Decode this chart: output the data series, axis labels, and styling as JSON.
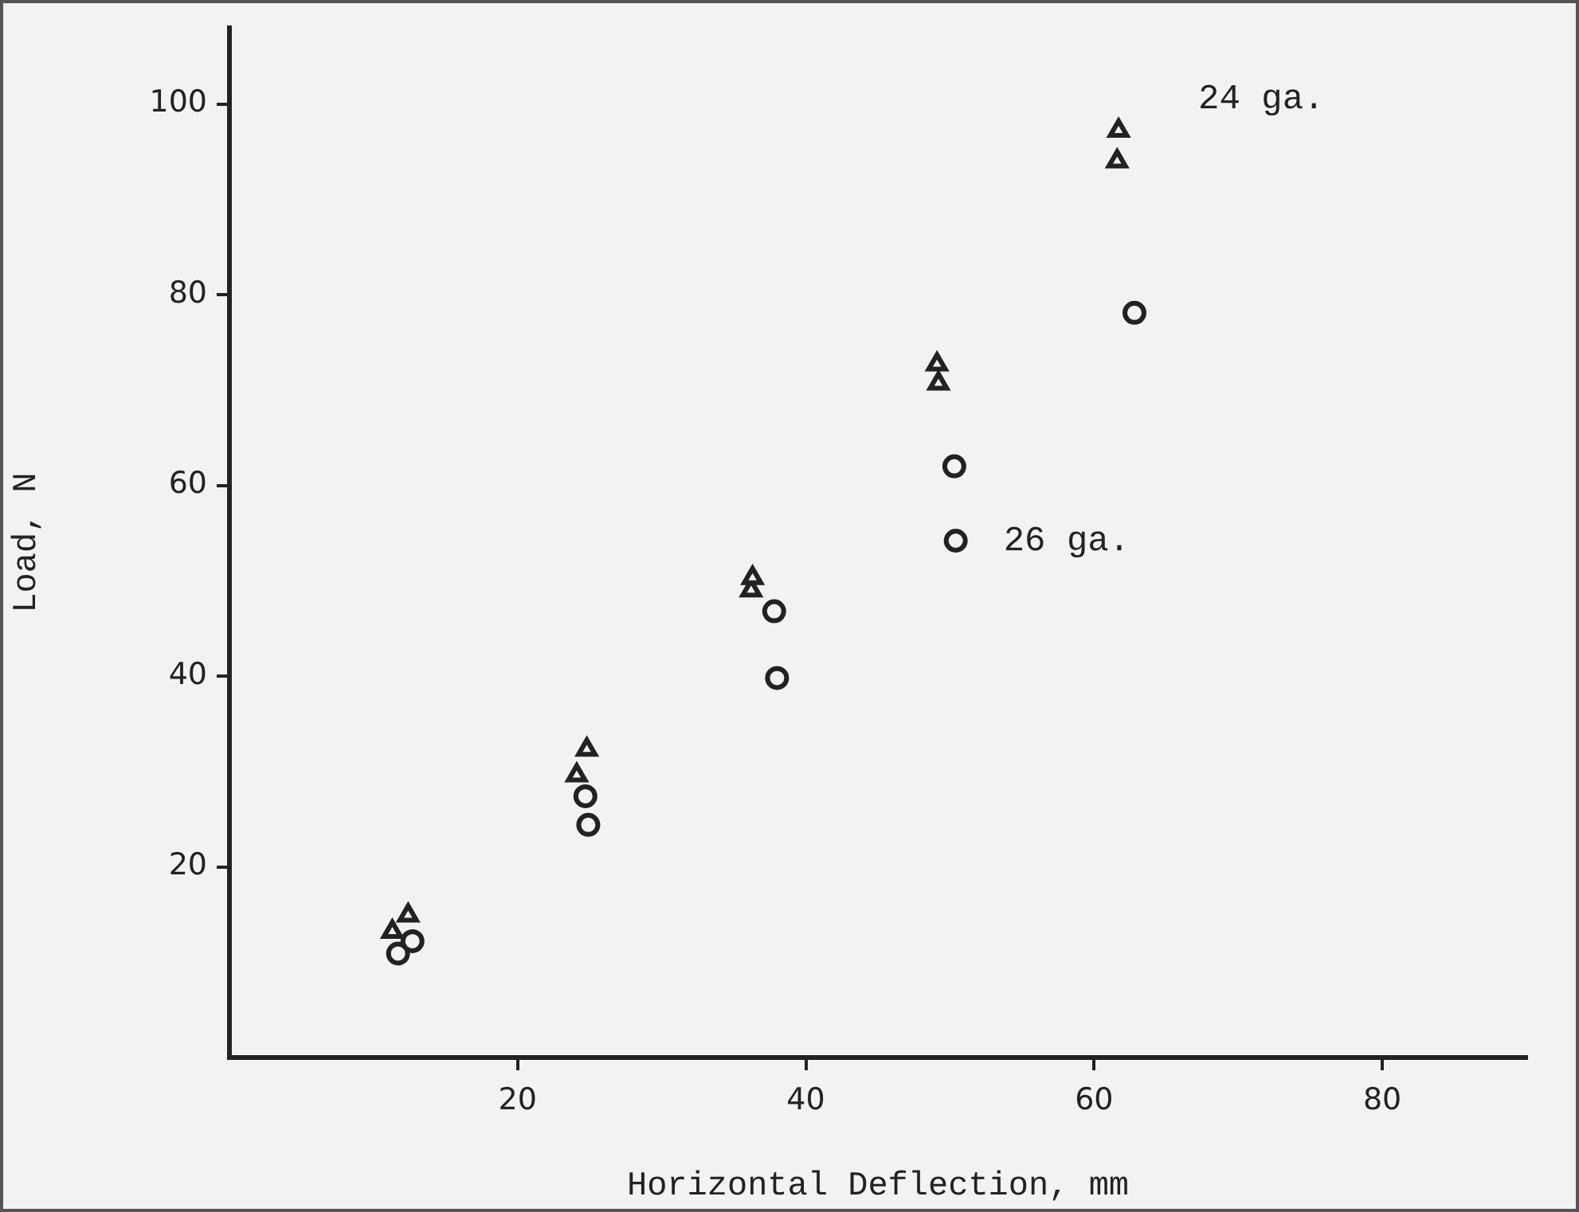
{
  "chart_data": {
    "type": "scatter",
    "xlabel": "Horizontal Deflection, mm",
    "ylabel": "Load, N",
    "xlim": [
      0,
      90
    ],
    "ylim": [
      0,
      108
    ],
    "xticks": [
      20,
      40,
      60,
      80
    ],
    "yticks": [
      20,
      40,
      60,
      80,
      100
    ],
    "grid": false,
    "legend": false,
    "series": [
      {
        "name": "24 ga.",
        "color": "#222222",
        "marker": "triangle",
        "x": [
          11.3,
          12.4,
          24.1,
          24.8,
          36.2,
          36.3,
          49.1,
          49.2,
          61.6,
          61.7
        ],
        "values": [
          13.2,
          14.9,
          29.6,
          32.3,
          49.0,
          50.3,
          72.7,
          70.7,
          94.0,
          97.2
        ]
      },
      {
        "name": "26 ga.",
        "color": "#222222",
        "marker": "circle",
        "x": [
          11.7,
          12.7,
          24.9,
          24.7,
          38.0,
          37.8,
          50.4,
          50.3,
          62.8
        ],
        "values": [
          10.9,
          12.2,
          24.4,
          27.4,
          39.8,
          46.8,
          54.2,
          62.0,
          78.1
        ]
      }
    ]
  }
}
